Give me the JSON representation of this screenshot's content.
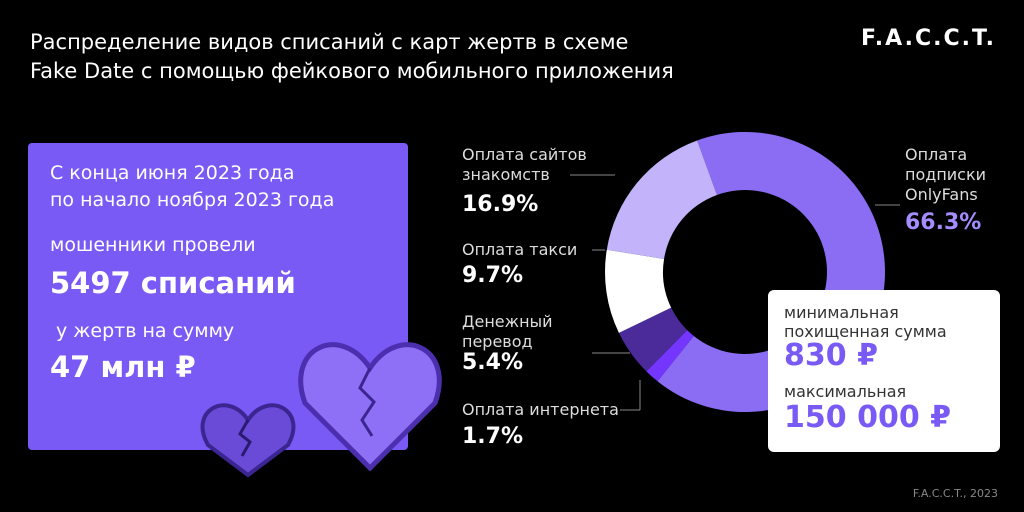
{
  "title_lines": [
    "Распределение видов списаний с карт жертв в схеме",
    "Fake Date с помощью фейкового мобильного приложения"
  ],
  "logo": "F.A.C.C.T.",
  "footer": "F.A.C.C.T., 2023",
  "summary": {
    "period_1": "С конца июня 2023 года",
    "period_2": "по начало ноября 2023 года",
    "lead": "мошенники провели",
    "count": "5497 списаний",
    "sum_lead": "у жертв на сумму",
    "sum": "47 млн ₽"
  },
  "amounts": {
    "min_label": "минимальная\nпохищенная сумма",
    "min_value": "830 ₽",
    "max_label": "максимальная",
    "max_value": "150 000 ₽"
  },
  "chart_data": {
    "type": "donut",
    "categories": [
      "Оплата\nподписки\nOnlyFans",
      "Оплата интернета",
      "Денежный\nперевод",
      "Оплата такси",
      "Оплата сайтов\nзнакомств"
    ],
    "values": [
      66.3,
      1.7,
      5.4,
      9.7,
      16.9
    ],
    "value_labels": [
      "66.3%",
      "1.7%",
      "5.4%",
      "9.7%",
      "16.9%"
    ],
    "colors": [
      "#8b6df4",
      "#7436ff",
      "#4b2a9a",
      "#ffffff",
      "#c2b3fa"
    ]
  }
}
